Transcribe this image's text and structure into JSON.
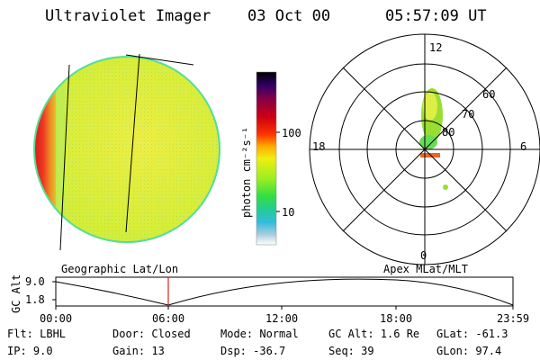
{
  "header": {
    "instrument": "Ultraviolet Imager",
    "date": "03 Oct 00",
    "time": "05:57:09 UT"
  },
  "colorbar": {
    "label": "photon cm⁻²s⁻¹",
    "ticks": [
      "100",
      "10"
    ]
  },
  "panels": {
    "left_label": "Geographic Lat/Lon",
    "right_label": "Apex MLat/MLT"
  },
  "polar": {
    "mlt_labels": [
      "12",
      "18",
      "6",
      "0"
    ],
    "lat_labels": [
      "60",
      "70",
      "80"
    ]
  },
  "altitude_plot": {
    "ylabel": "GC Alt",
    "yticks": [
      "9.0",
      "1.8"
    ],
    "xticks": [
      "00:00",
      "06:00",
      "12:00",
      "18:00",
      "23:59"
    ],
    "marker_time": "05:57:09",
    "marker_color": "#e02020"
  },
  "info": {
    "flt": "Flt: LBHL",
    "ip": "IP:  9.0",
    "door": "Door: Closed",
    "gain": "Gain: 13",
    "mode": "Mode: Normal",
    "dsp": "Dsp:  -36.7",
    "gcalt": "GC Alt: 1.6 Re",
    "seq": "Seq: 39",
    "glat": "GLat:  -61.3",
    "glon": "GLon:  97.4"
  }
}
